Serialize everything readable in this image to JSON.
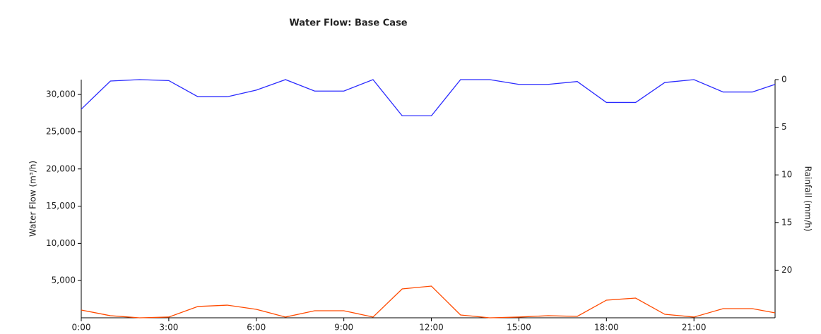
{
  "chart_data": {
    "type": "line",
    "title": "Water Flow: Base Case",
    "y_label": "Water Flow (m³/h)",
    "y2_label": "Rainfall (mm/h)",
    "x": [
      0,
      1,
      2,
      3,
      4,
      5,
      6,
      7,
      8,
      9,
      10,
      11,
      12,
      13,
      14,
      15,
      16,
      17,
      18,
      19,
      20,
      21,
      22,
      23,
      23.78
    ],
    "xlim": [
      0,
      23.78
    ],
    "xticks": [
      {
        "value": 0,
        "label": "0:00"
      },
      {
        "value": 3,
        "label": "3:00"
      },
      {
        "value": 6,
        "label": "6:00"
      },
      {
        "value": 9,
        "label": "9:00"
      },
      {
        "value": 12,
        "label": "12:00"
      },
      {
        "value": 15,
        "label": "15:00"
      },
      {
        "value": 18,
        "label": "18:00"
      },
      {
        "value": 21,
        "label": "21:00"
      }
    ],
    "ylim": [
      0,
      32000
    ],
    "yticks": [
      {
        "value": 5000,
        "label": "5,000"
      },
      {
        "value": 10000,
        "label": "10,000"
      },
      {
        "value": 15000,
        "label": "15,000"
      },
      {
        "value": 20000,
        "label": "20,000"
      },
      {
        "value": 25000,
        "label": "25,000"
      },
      {
        "value": 30000,
        "label": "30,000"
      }
    ],
    "y2lim": [
      25,
      0
    ],
    "y2ticks": [
      0,
      5,
      10,
      15,
      20
    ],
    "series": [
      {
        "name": "Water Flow",
        "color": "#ff4a00",
        "values": [
          1040,
          280,
          0,
          100,
          1520,
          1700,
          1140,
          100,
          950,
          950,
          100,
          3880,
          4260,
          380,
          0,
          100,
          280,
          190,
          2370,
          2650,
          470,
          100,
          1230,
          1230,
          660
        ]
      },
      {
        "name": "Rainfall",
        "color": "#2a2aff",
        "axis": "y2",
        "values": [
          3.1,
          0.15,
          0,
          0.1,
          1.8,
          1.8,
          1.1,
          0,
          1.2,
          1.2,
          0,
          3.8,
          3.8,
          0,
          0,
          0.5,
          0.5,
          0.2,
          2.4,
          2.4,
          0.3,
          0,
          1.3,
          1.3,
          0.5
        ]
      }
    ]
  }
}
